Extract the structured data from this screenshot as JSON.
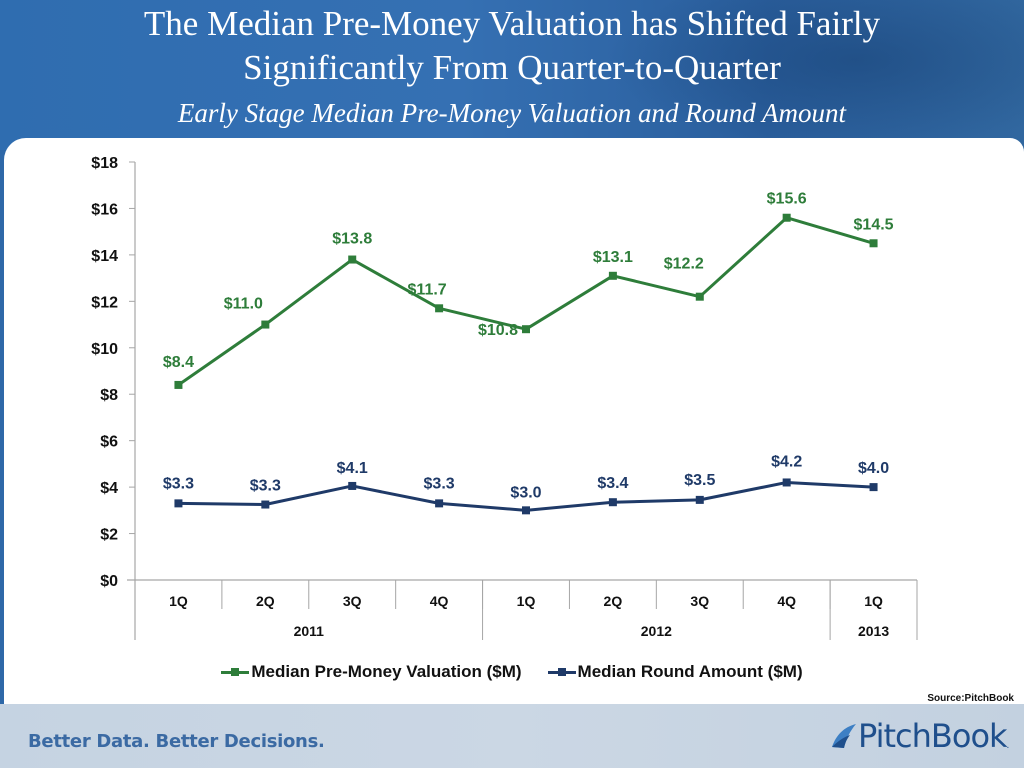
{
  "header": {
    "title_line1": "The Median Pre-Money Valuation has Shifted Fairly",
    "title_line2": "Significantly From Quarter-to-Quarter",
    "subtitle": "Early Stage Median Pre-Money Valuation and Round Amount"
  },
  "footer": {
    "tagline": "Better Data. Better Decisions.",
    "logo": "PitchBook",
    "logo_dot": ".",
    "source": "Source:PitchBook"
  },
  "colors": {
    "valuation": "#2e7d3a",
    "round": "#1f3a68",
    "header_bg": "#2f6db0",
    "footer_bg": "#c8d5e3"
  },
  "chart_data": {
    "type": "line",
    "title": "Early Stage Median Pre-Money Valuation and Round Amount",
    "xlabel": "",
    "ylabel": "",
    "ylim": [
      0,
      18
    ],
    "yticks": [
      0,
      2,
      4,
      6,
      8,
      10,
      12,
      14,
      16,
      18
    ],
    "ytick_labels": [
      "$0",
      "$2",
      "$4",
      "$6",
      "$8",
      "$10",
      "$12",
      "$14",
      "$16",
      "$18"
    ],
    "categories": [
      "1Q",
      "2Q",
      "3Q",
      "4Q",
      "1Q",
      "2Q",
      "3Q",
      "4Q",
      "1Q"
    ],
    "year_groups": [
      {
        "label": "2011",
        "count": 4
      },
      {
        "label": "2012",
        "count": 4
      },
      {
        "label": "2013",
        "count": 1
      }
    ],
    "grid": false,
    "legend_position": "bottom",
    "series": [
      {
        "name": "Median Pre-Money Valuation ($M)",
        "color": "#2e7d3a",
        "values": [
          8.4,
          11.0,
          13.8,
          11.7,
          10.8,
          13.1,
          12.2,
          15.6,
          14.5
        ],
        "labels": [
          "$8.4",
          "$11.0",
          "$13.8",
          "$11.7",
          "$10.8",
          "$13.1",
          "$12.2",
          "$15.6",
          "$14.5"
        ]
      },
      {
        "name": "Median Round Amount ($M)",
        "color": "#1f3a68",
        "values": [
          3.3,
          3.25,
          4.05,
          3.3,
          3.0,
          3.35,
          3.45,
          4.2,
          4.0
        ],
        "labels": [
          "$3.3",
          "$3.3",
          "$4.1",
          "$3.3",
          "$3.0",
          "$3.4",
          "$3.5",
          "$4.2",
          "$4.0"
        ]
      }
    ]
  }
}
